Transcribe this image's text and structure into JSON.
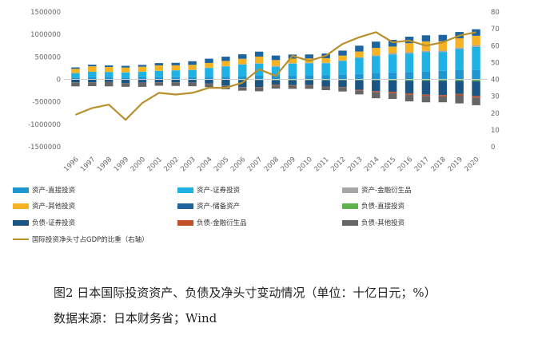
{
  "chart_data": {
    "type": "bar",
    "stacked": true,
    "categories": [
      "1996",
      "1997",
      "1998",
      "1999",
      "2000",
      "2001",
      "2002",
      "2003",
      "2004",
      "2005",
      "2006",
      "2007",
      "2008",
      "2009",
      "2010",
      "2011",
      "2012",
      "2013",
      "2014",
      "2015",
      "2016",
      "2017",
      "2018",
      "2019",
      "2020"
    ],
    "y_left": {
      "min": -1500000,
      "max": 1500000,
      "ticks": [
        -1500000,
        -1000000,
        -500000,
        0,
        500000,
        1000000,
        1500000
      ]
    },
    "y_right": {
      "min": 0,
      "max": 80,
      "ticks": [
        0,
        10,
        20,
        30,
        40,
        50,
        60,
        70,
        80
      ]
    },
    "grid": false,
    "legend_position": "bottom",
    "series": [
      {
        "name": "资产-直接投资",
        "side": "asset",
        "color": "#1f96d1",
        "values": [
          40000,
          45000,
          45000,
          40000,
          45000,
          50000,
          50000,
          50000,
          55000,
          60000,
          70000,
          80000,
          80000,
          80000,
          90000,
          95000,
          110000,
          120000,
          145000,
          155000,
          165000,
          175000,
          190000,
          205000,
          210000
        ]
      },
      {
        "name": "资产-证券投资",
        "side": "asset",
        "color": "#1fb2e4",
        "values": [
          100000,
          125000,
          120000,
          115000,
          125000,
          140000,
          150000,
          160000,
          200000,
          230000,
          260000,
          270000,
          200000,
          270000,
          270000,
          265000,
          300000,
          360000,
          370000,
          400000,
          410000,
          430000,
          420000,
          470000,
          510000
        ]
      },
      {
        "name": "资产-金融衍生品",
        "side": "asset",
        "color": "#a6a6a6",
        "values": [
          1000,
          1000,
          1000,
          2000,
          2000,
          2000,
          3000,
          4000,
          5000,
          5000,
          8000,
          12000,
          20000,
          12000,
          10000,
          10000,
          10000,
          10000,
          20000,
          30000,
          30000,
          30000,
          30000,
          30000,
          40000
        ]
      },
      {
        "name": "资产-其他投资",
        "side": "asset",
        "color": "#f5b223",
        "values": [
          95000,
          120000,
          110000,
          105000,
          110000,
          120000,
          110000,
          110000,
          105000,
          115000,
          120000,
          145000,
          130000,
          100000,
          95000,
          100000,
          110000,
          130000,
          165000,
          145000,
          200000,
          210000,
          210000,
          210000,
          210000
        ]
      },
      {
        "name": "资产-储备资产",
        "side": "asset",
        "color": "#1e64a0",
        "values": [
          30000,
          35000,
          35000,
          40000,
          40000,
          50000,
          55000,
          80000,
          95000,
          95000,
          100000,
          110000,
          100000,
          90000,
          90000,
          105000,
          110000,
          130000,
          140000,
          150000,
          145000,
          135000,
          140000,
          140000,
          145000
        ]
      },
      {
        "name": "负债-直接投资",
        "side": "liability",
        "color": "#5fb24c",
        "values": [
          5000,
          5000,
          5000,
          10000,
          10000,
          10000,
          10000,
          10000,
          10000,
          10000,
          15000,
          15000,
          20000,
          20000,
          20000,
          20000,
          20000,
          20000,
          20000,
          25000,
          30000,
          30000,
          30000,
          35000,
          40000
        ]
      },
      {
        "name": "负债-证券投资",
        "side": "liability",
        "color": "#1a5584",
        "values": [
          60000,
          60000,
          55000,
          75000,
          60000,
          55000,
          55000,
          60000,
          85000,
          130000,
          160000,
          160000,
          100000,
          110000,
          110000,
          140000,
          150000,
          210000,
          240000,
          250000,
          280000,
          310000,
          320000,
          290000,
          330000
        ]
      },
      {
        "name": "负债-金融衍生品",
        "side": "liability",
        "color": "#c2502a",
        "values": [
          1000,
          1000,
          1000,
          1000,
          2000,
          2000,
          2000,
          3000,
          4000,
          5000,
          6000,
          10000,
          15000,
          10000,
          10000,
          10000,
          10000,
          15000,
          20000,
          30000,
          30000,
          30000,
          30000,
          30000,
          35000
        ]
      },
      {
        "name": "负债-其他投资",
        "side": "liability",
        "color": "#666666",
        "values": [
          90000,
          85000,
          95000,
          80000,
          95000,
          75000,
          80000,
          80000,
          75000,
          75000,
          70000,
          80000,
          70000,
          70000,
          70000,
          70000,
          90000,
          90000,
          140000,
          130000,
          150000,
          140000,
          130000,
          180000,
          170000
        ]
      }
    ],
    "line": {
      "name": "国际投资净头寸占GDP的比重（右轴）",
      "axis": "right",
      "color": "#b8902c",
      "values": [
        19,
        23,
        25,
        16,
        26,
        32,
        31,
        32,
        35,
        35,
        38,
        46,
        42,
        54,
        51,
        54,
        61,
        65,
        68,
        62,
        63,
        60,
        62,
        66,
        68
      ]
    }
  },
  "caption": {
    "title": "图2   日本国际投资资产、负债及净头寸变动情况（单位：十亿日元；%）",
    "source": "数据来源：日本财务省；Wind"
  }
}
